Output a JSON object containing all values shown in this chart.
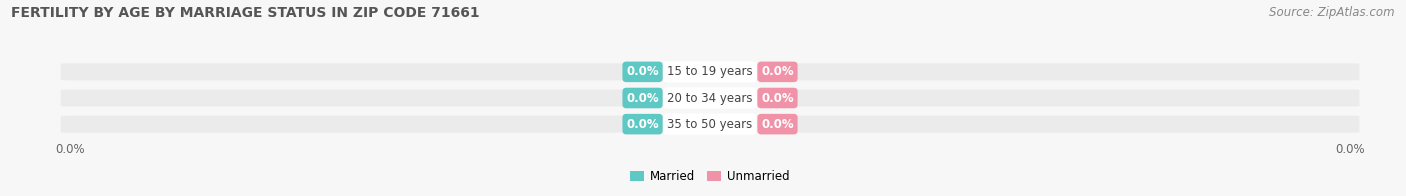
{
  "title": "FERTILITY BY AGE BY MARRIAGE STATUS IN ZIP CODE 71661",
  "source": "Source: ZipAtlas.com",
  "categories": [
    "15 to 19 years",
    "20 to 34 years",
    "35 to 50 years"
  ],
  "married_values": [
    0.0,
    0.0,
    0.0
  ],
  "unmarried_values": [
    0.0,
    0.0,
    0.0
  ],
  "married_color": "#5ec8c4",
  "unmarried_color": "#f093a8",
  "bar_bg_color": "#ebebeb",
  "fig_bg_color": "#f7f7f7",
  "title_fontsize": 10,
  "source_fontsize": 8.5,
  "label_fontsize": 8.5,
  "tick_fontsize": 8.5,
  "bar_height": 0.62,
  "badge_color_married": "#5ec8c4",
  "badge_color_unmarried": "#f093a8",
  "cat_text_color": "#444444",
  "tick_color": "#666666"
}
